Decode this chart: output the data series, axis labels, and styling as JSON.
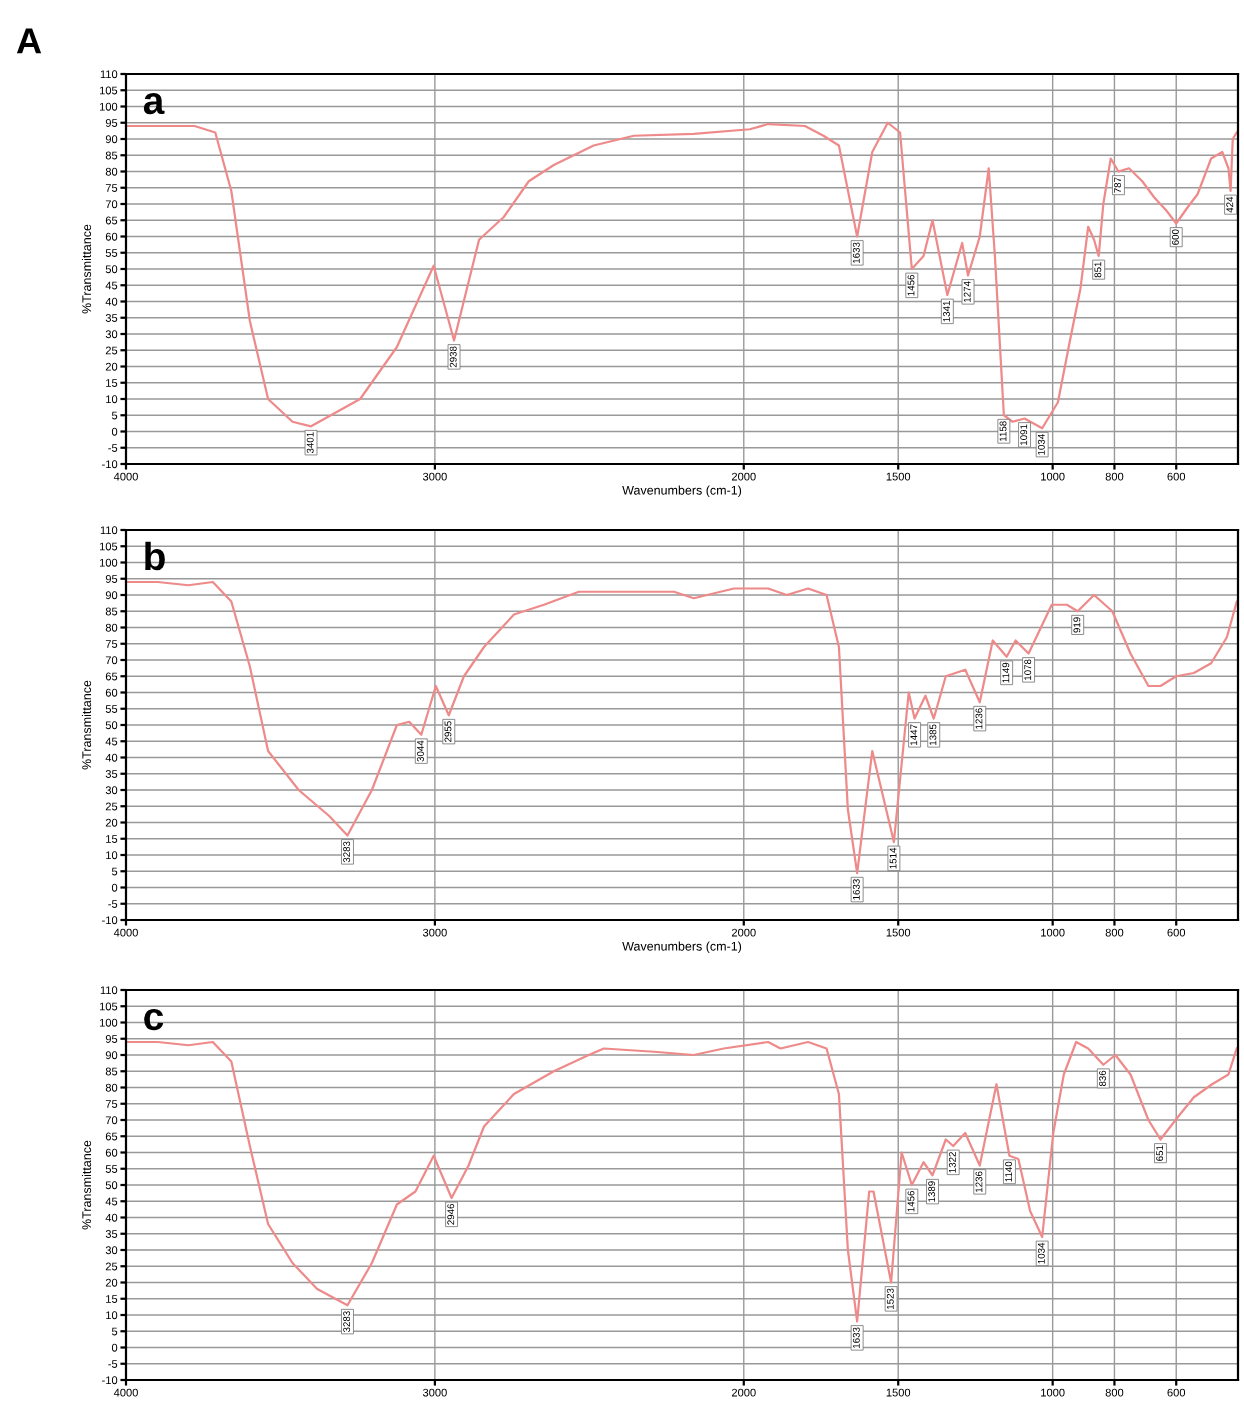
{
  "chart_data": [
    {
      "type": "line",
      "title": "A",
      "ylabel": "%Transmittance",
      "xlabel": "Wavenumbers (cm-1)",
      "xlim": [
        4000,
        400
      ],
      "xticks": [
        4000,
        3000,
        2000,
        1500,
        1000,
        800,
        600
      ],
      "ylim": [
        -10,
        110
      ],
      "yticks": [
        -10,
        -5,
        0,
        5,
        10,
        15,
        20,
        25,
        30,
        35,
        40,
        45,
        50,
        55,
        60,
        65,
        70,
        75,
        80,
        85,
        90,
        95,
        100,
        105,
        110
      ],
      "grid": true,
      "line_style": "solid",
      "marker": "none",
      "series": [
        {
          "color": "#ee8a8a",
          "x": [
            4000,
            3778,
            3711,
            3659,
            3599,
            3540,
            3461,
            3401,
            3242,
            3123,
            3004,
            2938,
            2857,
            2777,
            2696,
            2615,
            2486,
            2356,
            2162,
            1980,
            1921,
            1802,
            1742,
            1692,
            1633,
            1584,
            1534,
            1494,
            1456,
            1418,
            1389,
            1341,
            1293,
            1274,
            1236,
            1207,
            1187,
            1158,
            1130,
            1091,
            1034,
            983,
            944,
            910,
            885,
            866,
            851,
            836,
            812,
            787,
            753,
            710,
            671,
            632,
            600,
            563,
            531,
            487,
            451,
            431,
            424,
            417,
            404
          ],
          "values": [
            94,
            94,
            92,
            74,
            34,
            10,
            3,
            1.6,
            10,
            26,
            51,
            28,
            59,
            66,
            77,
            82,
            88,
            91,
            91.6,
            93,
            94.6,
            94,
            91,
            88,
            60,
            86,
            95,
            92,
            50,
            54,
            65,
            42,
            58,
            48,
            60,
            81,
            54,
            5,
            3,
            4,
            1,
            9,
            28,
            44,
            63,
            59,
            54,
            70,
            84,
            80,
            81,
            77,
            72,
            68,
            64,
            69,
            73,
            84,
            86,
            81,
            74,
            90,
            92
          ]
        }
      ],
      "annotations": [
        "a",
        {
          "text": "3401",
          "x": 3401,
          "y": 1.6
        },
        {
          "text": "2938",
          "x": 2938,
          "y": 28
        },
        {
          "text": "1633",
          "x": 1633,
          "y": 60
        },
        {
          "text": "1456",
          "x": 1456,
          "y": 50
        },
        {
          "text": "1341",
          "x": 1341,
          "y": 42
        },
        {
          "text": "1274",
          "x": 1274,
          "y": 48
        },
        {
          "text": "1158",
          "x": 1158,
          "y": 5
        },
        {
          "text": "1091",
          "x": 1091,
          "y": 4
        },
        {
          "text": "1034",
          "x": 1034,
          "y": 1
        },
        {
          "text": "851",
          "x": 851,
          "y": 54
        },
        {
          "text": "787",
          "x": 787,
          "y": 80
        },
        {
          "text": "600",
          "x": 600,
          "y": 64
        },
        {
          "text": "424",
          "x": 424,
          "y": 74
        }
      ]
    },
    {
      "type": "line",
      "ylabel": "%Transmittance",
      "xlabel": "Wavenumbers (cm-1)",
      "xlim": [
        4000,
        400
      ],
      "xticks": [
        4000,
        3000,
        2000,
        1500,
        1000,
        800,
        600
      ],
      "ylim": [
        -10,
        110
      ],
      "yticks": [
        -10,
        -5,
        0,
        5,
        10,
        15,
        20,
        25,
        30,
        35,
        40,
        45,
        50,
        55,
        60,
        65,
        70,
        75,
        80,
        85,
        90,
        95,
        100,
        105,
        110
      ],
      "grid": true,
      "line_style": "solid",
      "marker": "none",
      "series": [
        {
          "color": "#ee8a8a",
          "x": [
            4000,
            3897,
            3798,
            3719,
            3659,
            3599,
            3540,
            3441,
            3342,
            3283,
            3204,
            3123,
            3083,
            3044,
            2997,
            2955,
            2906,
            2841,
            2744,
            2647,
            2534,
            2388,
            2226,
            2162,
            2032,
            1921,
            1861,
            1792,
            1732,
            1692,
            1663,
            1633,
            1584,
            1514,
            1489,
            1466,
            1447,
            1412,
            1385,
            1346,
            1283,
            1236,
            1194,
            1149,
            1120,
            1078,
            1003,
            954,
            919,
            866,
            807,
            748,
            690,
            651,
            600,
            543,
            487,
            436,
            404
          ],
          "values": [
            94,
            94,
            93,
            94,
            88,
            68,
            42,
            30,
            22,
            16,
            30,
            50,
            51,
            47,
            62,
            53,
            65,
            74,
            84,
            87,
            91,
            91,
            91,
            89,
            92,
            92,
            90,
            92,
            90,
            74,
            24,
            4.4,
            42,
            14,
            38,
            60,
            52,
            59,
            52,
            65,
            67,
            57,
            76,
            71,
            76,
            72,
            87,
            87,
            85,
            90,
            85,
            72,
            62,
            62,
            65,
            66,
            69,
            77,
            88
          ]
        }
      ],
      "annotations": [
        "b",
        {
          "text": "3283",
          "x": 3283,
          "y": 16
        },
        {
          "text": "3044",
          "x": 3044,
          "y": 47
        },
        {
          "text": "2955",
          "x": 2955,
          "y": 53
        },
        {
          "text": "1633",
          "x": 1633,
          "y": 4.4
        },
        {
          "text": "1514",
          "x": 1514,
          "y": 14
        },
        {
          "text": "1447",
          "x": 1447,
          "y": 52
        },
        {
          "text": "1385",
          "x": 1385,
          "y": 52
        },
        {
          "text": "1236",
          "x": 1236,
          "y": 57
        },
        {
          "text": "1149",
          "x": 1149,
          "y": 71
        },
        {
          "text": "1078",
          "x": 1078,
          "y": 72
        },
        {
          "text": "919",
          "x": 919,
          "y": 85
        }
      ]
    },
    {
      "type": "line",
      "ylabel": "%Transmittance",
      "xlim": [
        4000,
        400
      ],
      "xticks": [
        4000,
        3000,
        2000,
        1500,
        1000,
        800,
        600
      ],
      "ylim": [
        -10,
        110
      ],
      "yticks": [
        -10,
        -5,
        0,
        5,
        10,
        15,
        20,
        25,
        30,
        35,
        40,
        45,
        50,
        55,
        60,
        65,
        70,
        75,
        80,
        85,
        90,
        95,
        100,
        105,
        110
      ],
      "grid": true,
      "line_style": "solid",
      "marker": "none",
      "series": [
        {
          "color": "#ee8a8a",
          "x": [
            4000,
            3897,
            3798,
            3719,
            3659,
            3599,
            3540,
            3461,
            3381,
            3283,
            3204,
            3123,
            3063,
            3004,
            2946,
            2891,
            2841,
            2744,
            2615,
            2502,
            2453,
            2291,
            2162,
            2065,
            1921,
            1881,
            1792,
            1732,
            1692,
            1663,
            1633,
            1594,
            1580,
            1523,
            1489,
            1456,
            1418,
            1389,
            1346,
            1322,
            1283,
            1236,
            1182,
            1140,
            1111,
            1073,
            1034,
            998,
            964,
            924,
            885,
            836,
            797,
            748,
            690,
            651,
            594,
            543,
            484,
            431,
            404
          ],
          "values": [
            94,
            94,
            93,
            94,
            88,
            62,
            38,
            26,
            18,
            13,
            26,
            44,
            48,
            59,
            46,
            56,
            68,
            78,
            85,
            90,
            92,
            91,
            90,
            92,
            94,
            92,
            94,
            92,
            78,
            30,
            8,
            48,
            48,
            20,
            60,
            50,
            57,
            53,
            64,
            62,
            66,
            56,
            81,
            59,
            58,
            42,
            34,
            66,
            84,
            94,
            92,
            87,
            90,
            84,
            70,
            64,
            71,
            77,
            81,
            84,
            92
          ]
        }
      ],
      "annotations": [
        "c",
        {
          "text": "3283",
          "x": 3283,
          "y": 13
        },
        {
          "text": "2946",
          "x": 2946,
          "y": 46
        },
        {
          "text": "1633",
          "x": 1633,
          "y": 8
        },
        {
          "text": "1523",
          "x": 1523,
          "y": 20
        },
        {
          "text": "1456",
          "x": 1456,
          "y": 50
        },
        {
          "text": "1389",
          "x": 1389,
          "y": 53
        },
        {
          "text": "1322",
          "x": 1322,
          "y": 62
        },
        {
          "text": "1236",
          "x": 1236,
          "y": 56
        },
        {
          "text": "1140",
          "x": 1140,
          "y": 59
        },
        {
          "text": "1034",
          "x": 1034,
          "y": 34
        },
        {
          "text": "836",
          "x": 836,
          "y": 87
        },
        {
          "text": "651",
          "x": 651,
          "y": 64
        }
      ]
    }
  ]
}
